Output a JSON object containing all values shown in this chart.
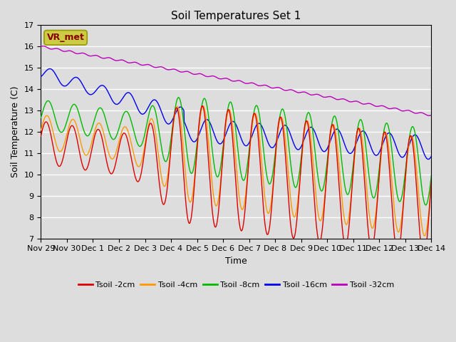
{
  "title": "Soil Temperatures Set 1",
  "xlabel": "Time",
  "ylabel": "Soil Temperature (C)",
  "ylim": [
    7.0,
    17.0
  ],
  "yticks": [
    7.0,
    8.0,
    9.0,
    10.0,
    11.0,
    12.0,
    13.0,
    14.0,
    15.0,
    16.0,
    17.0
  ],
  "xtick_labels": [
    "Nov 29",
    "Nov 30",
    "Dec 1",
    "Dec 2",
    "Dec 3",
    "Dec 4",
    "Dec 5",
    "Dec 6",
    "Dec 7",
    "Dec 8",
    "Dec 9",
    "Dec 10",
    "Dec 11",
    "Dec 12",
    "Dec 13",
    "Dec 14"
  ],
  "series_colors": [
    "#dd0000",
    "#ff9900",
    "#00bb00",
    "#0000ee",
    "#bb00bb"
  ],
  "series_labels": [
    "Tsoil -2cm",
    "Tsoil -4cm",
    "Tsoil -8cm",
    "Tsoil -16cm",
    "Tsoil -32cm"
  ],
  "background_color": "#dddddd",
  "plot_bg_color": "#dddddd",
  "vr_met_box_facecolor": "#cccc44",
  "vr_met_box_edgecolor": "#999900",
  "vr_met_text_color": "#880000",
  "n_points": 1440,
  "total_days": 15
}
